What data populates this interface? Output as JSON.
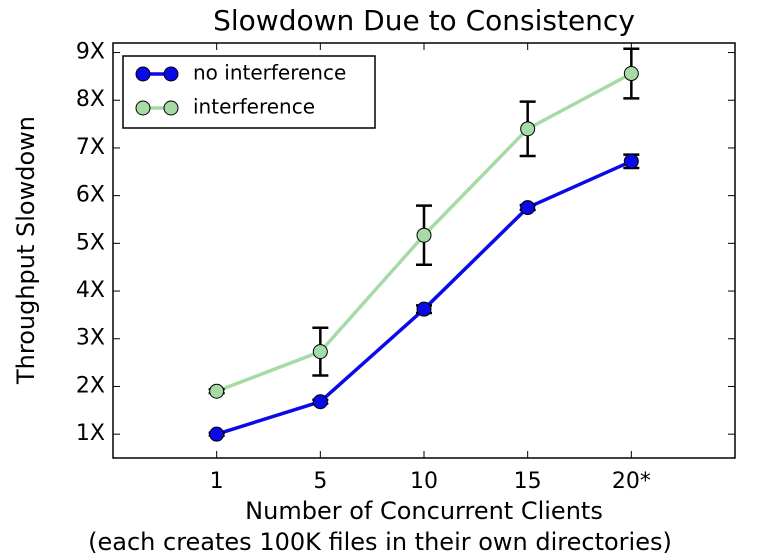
{
  "chart_data": {
    "type": "line",
    "title": "Slowdown Due to Consistency",
    "xlabel": [
      "Number of Concurrent Clients",
      "(each creates 100K files in their own directories)"
    ],
    "ylabel": "Throughput Slowdown",
    "categories": [
      "1",
      "5",
      "10",
      "15",
      "20*"
    ],
    "series": [
      {
        "name": "no interference",
        "color": "#0a0ae8",
        "values": [
          1.0,
          1.68,
          3.62,
          5.75,
          6.72
        ],
        "errors": [
          0.03,
          0.04,
          0.08,
          0.05,
          0.14
        ]
      },
      {
        "name": "interference",
        "color": "#a6dba6",
        "values": [
          1.9,
          2.73,
          5.17,
          7.4,
          8.56
        ],
        "errors": [
          0.04,
          0.5,
          0.62,
          0.57,
          0.52
        ]
      }
    ],
    "ylim": [
      0.5,
      9.2
    ],
    "yticks": [
      {
        "value": 1,
        "label": "1X"
      },
      {
        "value": 2,
        "label": "2X"
      },
      {
        "value": 3,
        "label": "3X"
      },
      {
        "value": 4,
        "label": "4X"
      },
      {
        "value": 5,
        "label": "5X"
      },
      {
        "value": 6,
        "label": "6X"
      },
      {
        "value": 7,
        "label": "7X"
      },
      {
        "value": 8,
        "label": "8X"
      },
      {
        "value": 9,
        "label": "9X"
      }
    ],
    "legend": "upper left",
    "grid": false
  }
}
